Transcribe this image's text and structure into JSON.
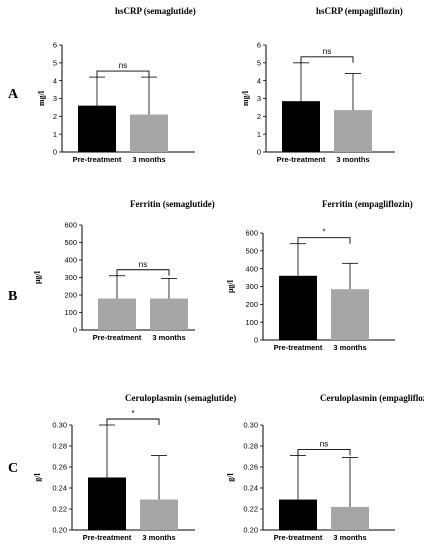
{
  "figure": {
    "row_labels": [
      "A",
      "B",
      "C"
    ]
  },
  "chart_data": [
    {
      "type": "bar",
      "title": "hsCRP (semaglutide)",
      "ylabel": "mg/l",
      "categories": [
        "Pre-treatment",
        "3 months"
      ],
      "values": [
        2.6,
        2.1
      ],
      "error_upper": [
        4.2,
        4.2
      ],
      "ylim": [
        0,
        6
      ],
      "yticks": [
        0,
        1,
        2,
        3,
        4,
        5,
        6
      ],
      "significance": "ns",
      "bar_colors": [
        "#000000",
        "#a6a6a6"
      ]
    },
    {
      "type": "bar",
      "title": "hsCRP (empagliflozin)",
      "ylabel": "mg/l",
      "categories": [
        "Pre-treatment",
        "3 months"
      ],
      "values": [
        2.85,
        2.35
      ],
      "error_upper": [
        5.0,
        4.4
      ],
      "ylim": [
        0,
        6
      ],
      "yticks": [
        0,
        1,
        2,
        3,
        4,
        5,
        6
      ],
      "significance": "ns",
      "bar_colors": [
        "#000000",
        "#a6a6a6"
      ]
    },
    {
      "type": "bar",
      "title": "Ferritin (semaglutide)",
      "ylabel": "μg/l",
      "categories": [
        "Pre-treatment",
        "3 months"
      ],
      "values": [
        180,
        180
      ],
      "error_upper": [
        310,
        295
      ],
      "ylim": [
        0,
        600
      ],
      "yticks": [
        0,
        100,
        200,
        300,
        400,
        500,
        600
      ],
      "significance": "ns",
      "bar_colors": [
        "#a6a6a6",
        "#a6a6a6"
      ]
    },
    {
      "type": "bar",
      "title": "Ferritin (empagliflozin)",
      "ylabel": "μg/l",
      "categories": [
        "Pre-treatment",
        "3 months"
      ],
      "values": [
        360,
        285
      ],
      "error_upper": [
        540,
        430
      ],
      "ylim": [
        0,
        600
      ],
      "yticks": [
        0,
        100,
        200,
        300,
        400,
        500,
        600
      ],
      "significance": "*",
      "bar_colors": [
        "#000000",
        "#a6a6a6"
      ]
    },
    {
      "type": "bar",
      "title": "Ceruloplasmin (semaglutide)",
      "ylabel": "g/l",
      "categories": [
        "Pre-treatment",
        "3 months"
      ],
      "values": [
        0.25,
        0.229
      ],
      "error_upper": [
        0.3,
        0.271
      ],
      "ylim": [
        0.2,
        0.3
      ],
      "yticks": [
        "0.20",
        "0.22",
        "0.24",
        "0.26",
        "0.28",
        "0.30"
      ],
      "significance": "*",
      "bar_colors": [
        "#000000",
        "#a6a6a6"
      ]
    },
    {
      "type": "bar",
      "title": "Ceruloplasmin (empagliflozin)",
      "ylabel": "g/l",
      "categories": [
        "Pre-treatment",
        "3 months"
      ],
      "values": [
        0.229,
        0.222
      ],
      "error_upper": [
        0.271,
        0.269
      ],
      "ylim": [
        0.2,
        0.3
      ],
      "yticks": [
        "0.20",
        "0.22",
        "0.24",
        "0.26",
        "0.28",
        "0.30"
      ],
      "significance": "ns",
      "bar_colors": [
        "#000000",
        "#a6a6a6"
      ]
    }
  ]
}
